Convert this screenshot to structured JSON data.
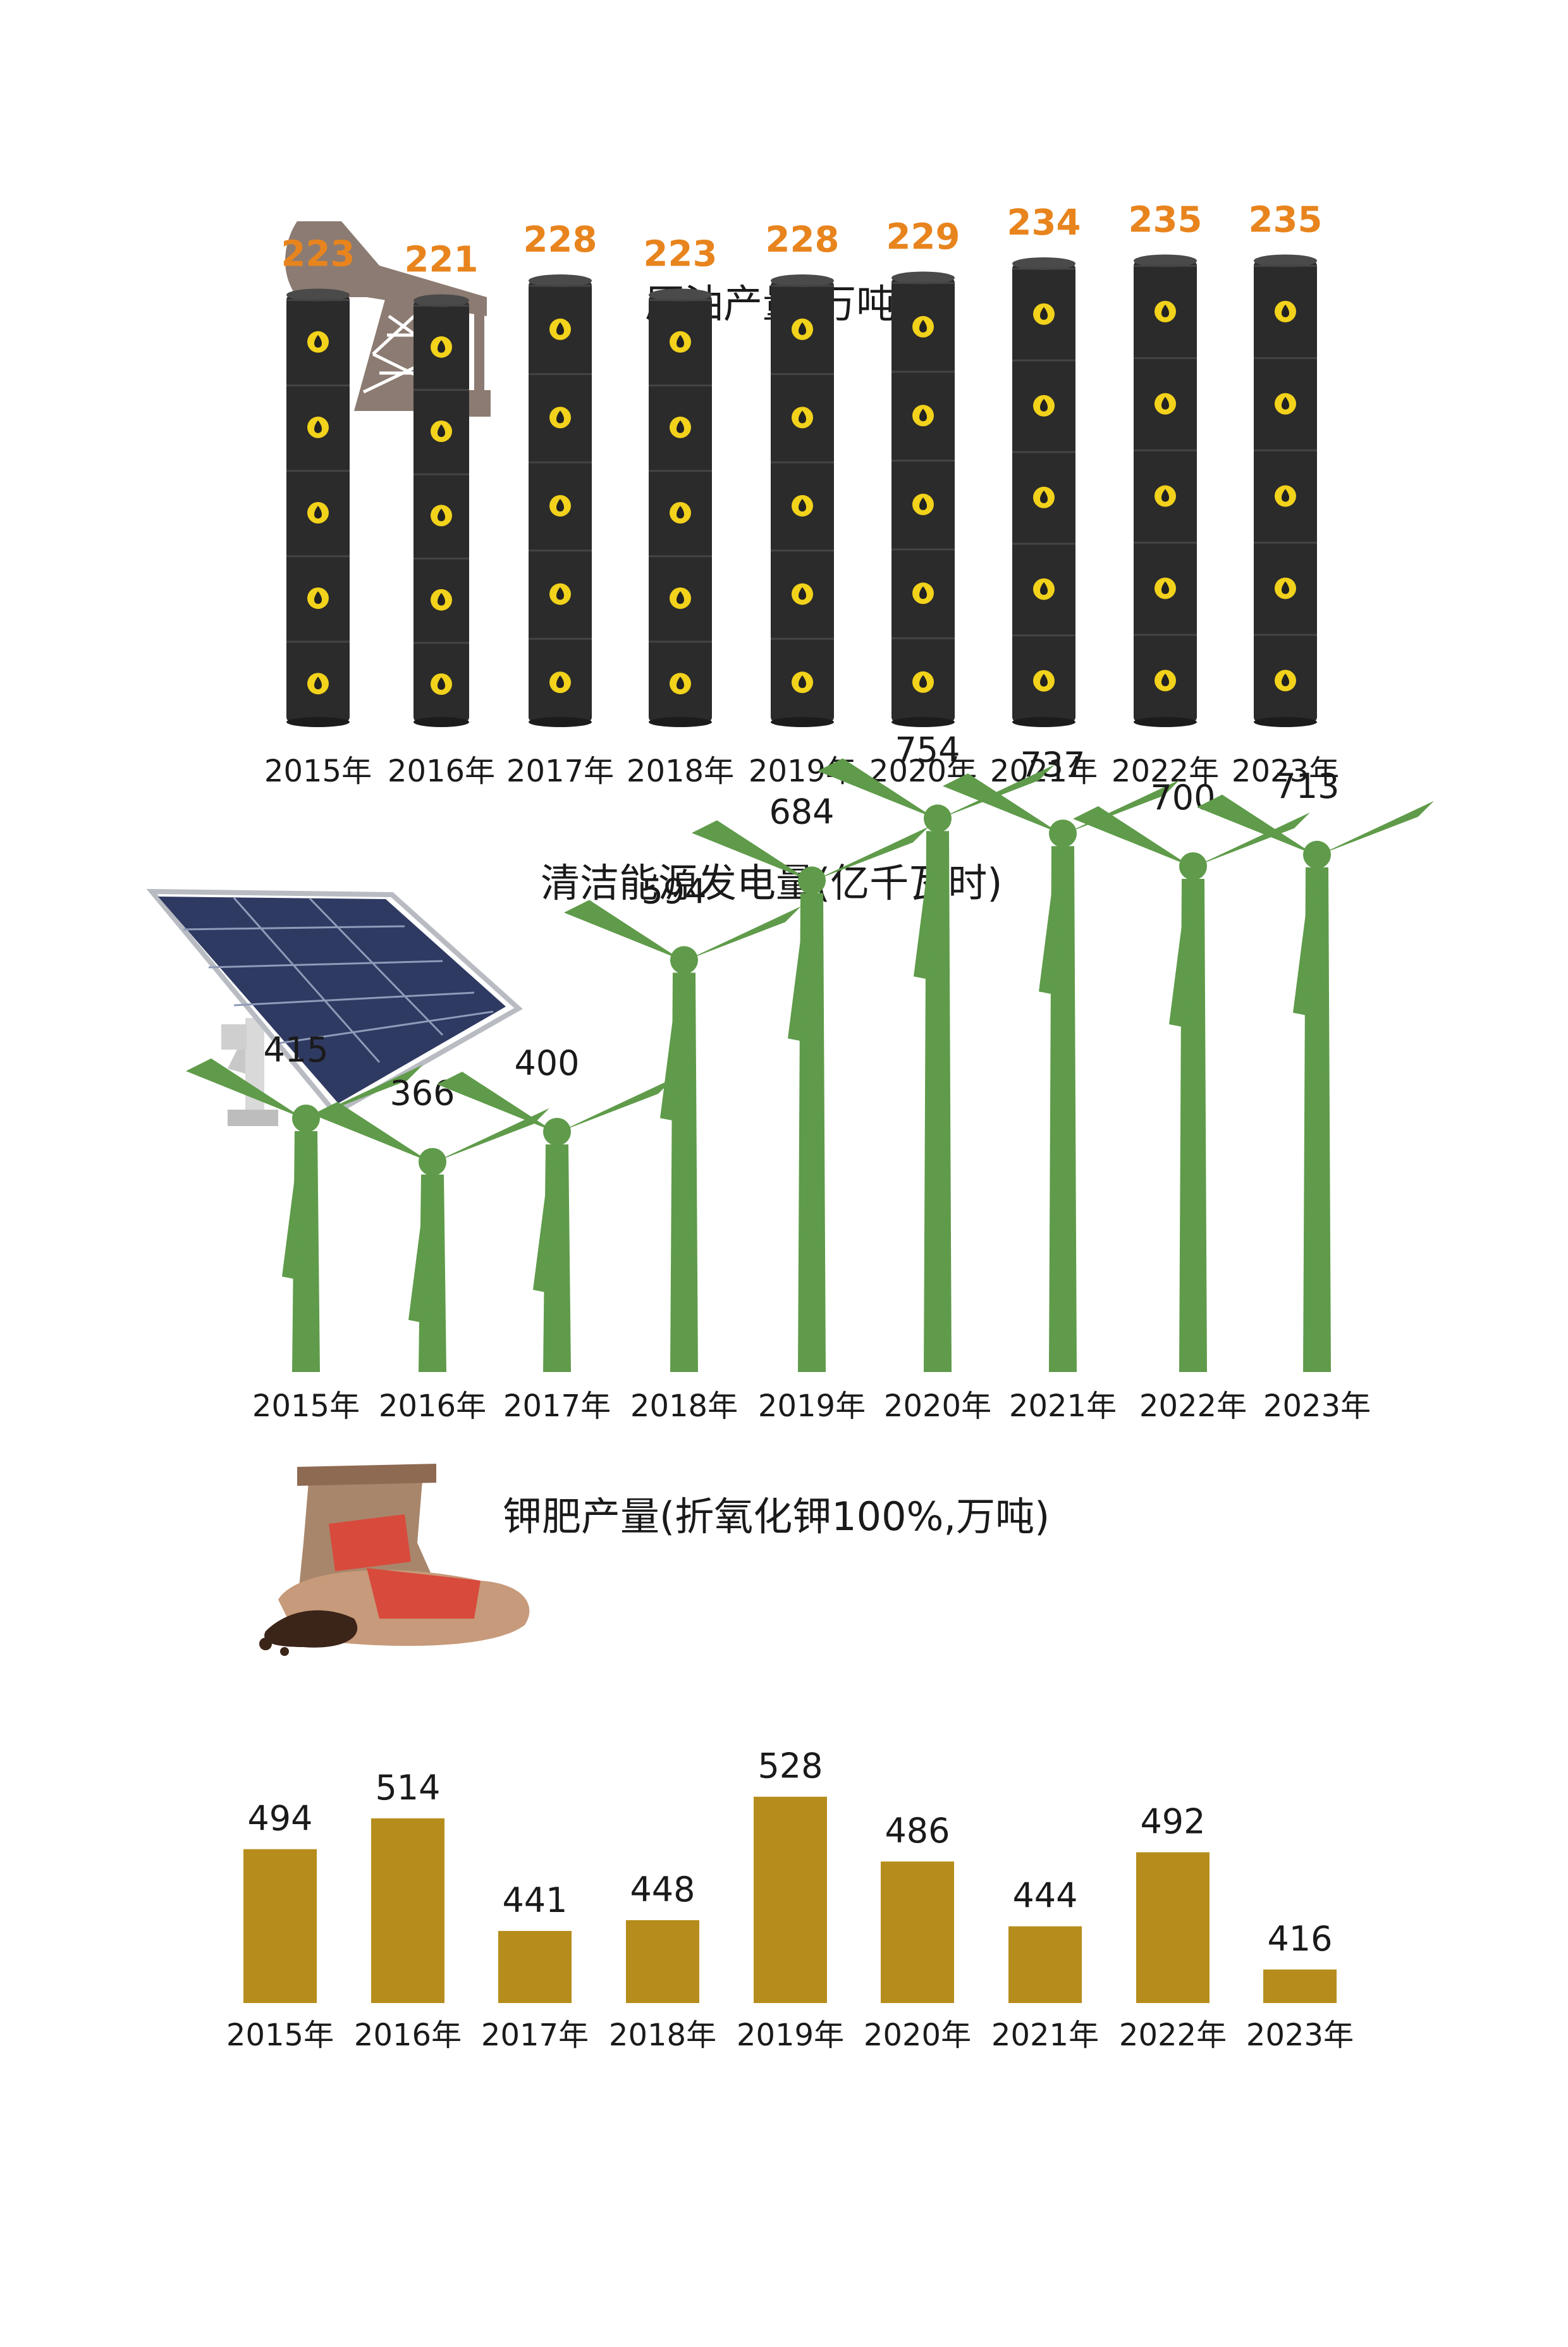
{
  "chart_data": [
    {
      "type": "bar",
      "title": "原油产量(万吨)",
      "categories": [
        "2015年",
        "2016年",
        "2017年",
        "2018年",
        "2019年",
        "2020年",
        "2021年",
        "2022年",
        "2023年"
      ],
      "values": [
        223,
        221,
        228,
        223,
        228,
        229,
        234,
        235,
        235
      ],
      "value_labels": [
        "223",
        "221",
        "228",
        "223",
        "228",
        "229",
        "234",
        "235",
        "235"
      ],
      "colors": {
        "bar": "#2b2b2b",
        "label": "#e8841d",
        "drop": "#f2d21b"
      },
      "icon": "oil-pump-icon"
    },
    {
      "type": "bar",
      "title": "清洁能源发电量(亿千瓦时)",
      "categories": [
        "2015年",
        "2016年",
        "2017年",
        "2018年",
        "2019年",
        "2020年",
        "2021年",
        "2022年",
        "2023年"
      ],
      "values": [
        415,
        366,
        400,
        594,
        684,
        754,
        737,
        700,
        713
      ],
      "value_labels": [
        "415",
        "366",
        "400",
        "594",
        "684",
        "754",
        "737",
        "700",
        "713"
      ],
      "colors": {
        "bar": "#5f9b4a"
      },
      "icon": "solar-panel-icon"
    },
    {
      "type": "bar",
      "title": "钾肥产量(折氧化钾100%,万吨)",
      "categories": [
        "2015年",
        "2016年",
        "2017年",
        "2018年",
        "2019年",
        "2020年",
        "2021年",
        "2022年",
        "2023年"
      ],
      "values": [
        494,
        514,
        441,
        448,
        528,
        486,
        444,
        492,
        416
      ],
      "value_labels": [
        "494",
        "514",
        "441",
        "448",
        "528",
        "486",
        "444",
        "492",
        "416"
      ],
      "colors": {
        "bar": "#b68d1c"
      },
      "icon": "fertilizer-bag-icon"
    }
  ]
}
